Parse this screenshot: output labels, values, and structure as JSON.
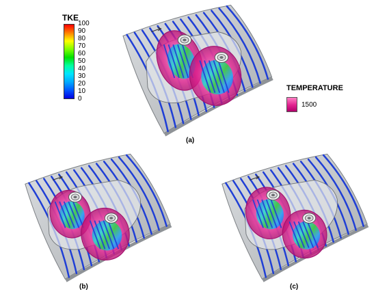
{
  "tke_legend": {
    "title": "TKE",
    "ticks": [
      "100",
      "90",
      "80",
      "70",
      "60",
      "50",
      "40",
      "30",
      "20",
      "10",
      "0"
    ],
    "gradient": [
      "#ff0000",
      "#ff7f00",
      "#ffff00",
      "#7fff00",
      "#00e000",
      "#00ff9f",
      "#00e5ff",
      "#00aaff",
      "#0055ff",
      "#0000e0"
    ]
  },
  "temperature_legend": {
    "title": "TEMPERATURE",
    "value": "1500",
    "color": "#e0208e"
  },
  "panels": [
    {
      "label": "(a)"
    },
    {
      "label": "(b)"
    },
    {
      "label": "(c)"
    }
  ],
  "colors": {
    "surface": "#c6c9cc",
    "streamline": "#1f3fd6",
    "flame": "#e0208e",
    "cavity": "#e4e7ea"
  }
}
